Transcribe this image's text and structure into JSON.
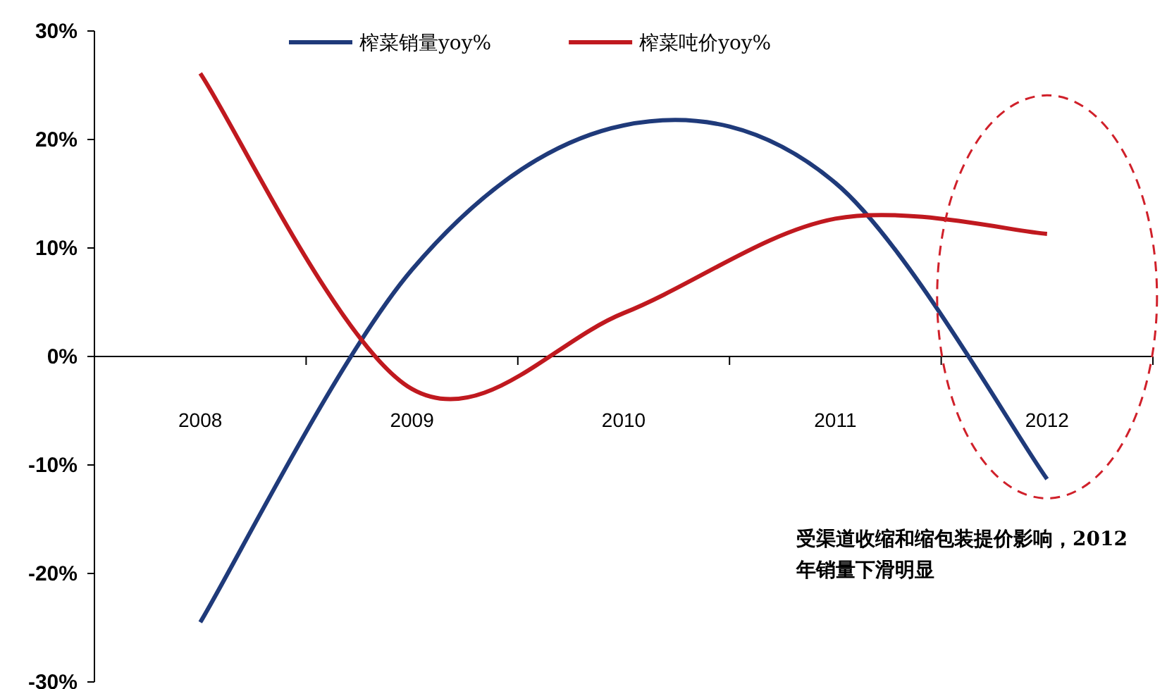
{
  "chart_data": {
    "type": "line",
    "categories": [
      "2008",
      "2009",
      "2010",
      "2011",
      "2012"
    ],
    "series": [
      {
        "name": "榨菜销量yoy%",
        "color": "#1f3a7a",
        "values": [
          -24.5,
          8,
          21.3,
          16,
          -11.3
        ]
      },
      {
        "name": "榨菜吨价yoy%",
        "color": "#c0191f",
        "values": [
          26.1,
          -3,
          4,
          12.7,
          11.3
        ]
      }
    ],
    "ylim": [
      -30,
      30
    ],
    "yticks": [
      {
        "value": -30,
        "label": "-30%"
      },
      {
        "value": -20,
        "label": "-20%"
      },
      {
        "value": -10,
        "label": "-10%"
      },
      {
        "value": 0,
        "label": "0%"
      },
      {
        "value": 10,
        "label": "10%"
      },
      {
        "value": 20,
        "label": "20%"
      },
      {
        "value": 30,
        "label": "30%"
      }
    ],
    "legend": "top",
    "marker": "none",
    "annotations": [
      "受渠道收缩和缩包装提价影响，2012年销量下滑明显"
    ]
  }
}
